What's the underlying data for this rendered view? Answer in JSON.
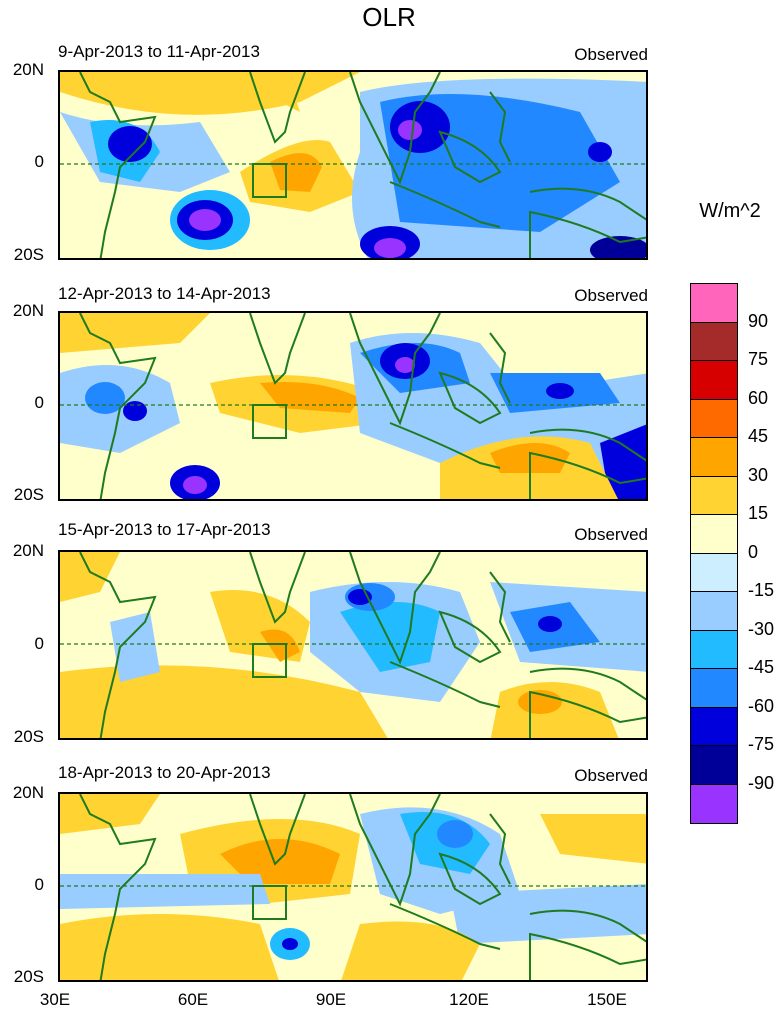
{
  "title": "OLR",
  "units": "W/m^2",
  "panels": [
    {
      "date": "9-Apr-2013 to 11-Apr-2013",
      "tag": "Observed"
    },
    {
      "date": "12-Apr-2013 to 14-Apr-2013",
      "tag": "Observed"
    },
    {
      "date": "15-Apr-2013 to 17-Apr-2013",
      "tag": "Observed"
    },
    {
      "date": "18-Apr-2013 to 20-Apr-2013",
      "tag": "Observed"
    }
  ],
  "lat_labels": [
    "20N",
    "0",
    "20S"
  ],
  "lon_labels": [
    "30E",
    "60E",
    "90E",
    "120E",
    "150E"
  ],
  "colorbar": {
    "colors": [
      "#ff66bb",
      "#a52a2a",
      "#d70000",
      "#ff6a00",
      "#ffa500",
      "#ffd332",
      "#ffffcc",
      "#cceeff",
      "#99ccff",
      "#22bbff",
      "#2288ff",
      "#0000dd",
      "#000099",
      "#9933ff"
    ],
    "labels": [
      "90",
      "75",
      "60",
      "45",
      "30",
      "15",
      "0",
      "-15",
      "-30",
      "-45",
      "-60",
      "-75",
      "-90"
    ]
  },
  "colors": {
    "coast": "#1e7b1e",
    "eq_line": "#1e7b1e"
  }
}
